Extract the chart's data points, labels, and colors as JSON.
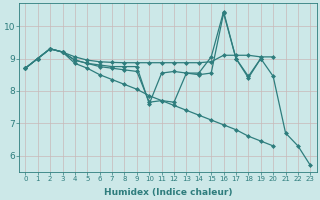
{
  "xlabel": "Humidex (Indice chaleur)",
  "ylabel": "",
  "xlim": [
    -0.5,
    23.5
  ],
  "ylim": [
    5.5,
    10.7
  ],
  "yticks": [
    6,
    7,
    8,
    9,
    10
  ],
  "xticks": [
    0,
    1,
    2,
    3,
    4,
    5,
    6,
    7,
    8,
    9,
    10,
    11,
    12,
    13,
    14,
    15,
    16,
    17,
    18,
    19,
    20,
    21,
    22,
    23
  ],
  "bg_color": "#cce8e8",
  "grid_color": "#b8d8d8",
  "line_color": "#2e7d7d",
  "series": [
    [
      8.7,
      9.0,
      9.3,
      9.2,
      8.95,
      8.85,
      8.8,
      8.75,
      8.75,
      8.75,
      7.6,
      8.55,
      8.6,
      8.55,
      8.55,
      9.05,
      10.45,
      9.0,
      8.45,
      9.0,
      8.45,
      6.7,
      6.3,
      5.7
    ],
    [
      8.7,
      9.0,
      9.3,
      9.2,
      9.05,
      8.95,
      8.9,
      8.88,
      8.87,
      8.87,
      8.87,
      8.87,
      8.87,
      8.87,
      8.87,
      8.9,
      9.1,
      9.1,
      9.1,
      9.05,
      9.05,
      null,
      null,
      null
    ],
    [
      8.7,
      9.0,
      9.3,
      9.2,
      8.95,
      8.85,
      8.75,
      8.7,
      8.65,
      8.6,
      7.65,
      7.7,
      7.65,
      8.55,
      8.5,
      8.55,
      10.4,
      9.0,
      8.4,
      9.0,
      null,
      null,
      null,
      null
    ],
    [
      8.7,
      9.0,
      9.3,
      9.2,
      8.85,
      8.7,
      8.5,
      8.35,
      8.2,
      8.05,
      7.85,
      7.7,
      7.55,
      7.4,
      7.25,
      7.1,
      6.95,
      6.8,
      6.6,
      6.45,
      6.3,
      null,
      null,
      null
    ]
  ],
  "marker": "D",
  "markersize": 2.0,
  "linewidth": 0.9,
  "tick_fontsize_x": 5.0,
  "tick_fontsize_y": 6.5,
  "xlabel_fontsize": 6.5,
  "xlabel_fontweight": "bold"
}
